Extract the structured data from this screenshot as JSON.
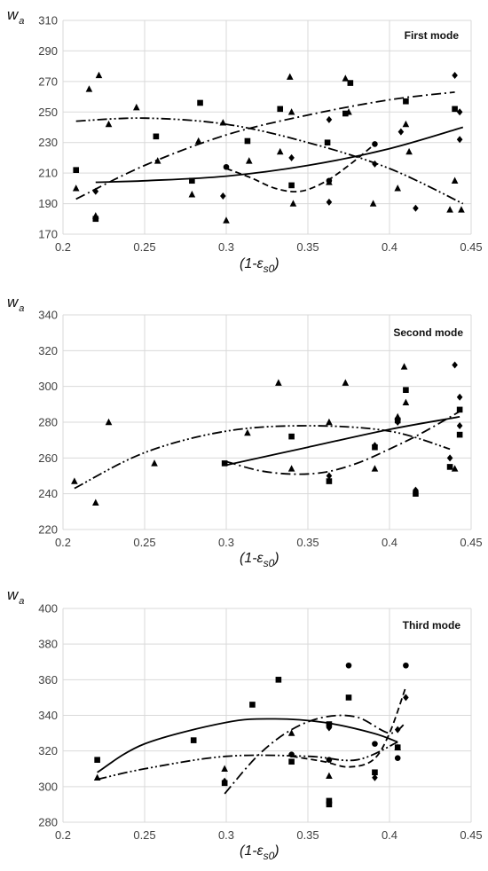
{
  "chart_data": [
    {
      "type": "scatter",
      "title": "First mode",
      "ylabel_main": "w",
      "ylabel_sub": "a",
      "xlabel_main": "(1-ε",
      "xlabel_sub": "s0",
      "xlabel_end": ")",
      "xlim": [
        0.2,
        0.45
      ],
      "ylim": [
        170,
        310
      ],
      "xticks": [
        "0.2",
        "0.25",
        "0.3",
        "0.35",
        "0.4",
        "0.45"
      ],
      "yticks": [
        "170",
        "190",
        "210",
        "230",
        "250",
        "270",
        "290",
        "310"
      ],
      "grid": true,
      "series": [
        {
          "marker": "triangle",
          "linestyle": "dash-dot-dot",
          "points": [
            [
              0.208,
              200
            ],
            [
              0.216,
              265
            ],
            [
              0.22,
              182
            ],
            [
              0.222,
              274
            ],
            [
              0.228,
              242
            ],
            [
              0.245,
              253
            ],
            [
              0.258,
              218
            ],
            [
              0.279,
              196
            ],
            [
              0.283,
              231
            ],
            [
              0.298,
              243
            ],
            [
              0.3,
              179
            ],
            [
              0.314,
              218
            ],
            [
              0.333,
              224
            ],
            [
              0.339,
              273
            ],
            [
              0.34,
              250
            ],
            [
              0.341,
              190
            ],
            [
              0.363,
              204
            ],
            [
              0.373,
              272
            ],
            [
              0.375,
              250
            ],
            [
              0.39,
              190
            ],
            [
              0.405,
              200
            ],
            [
              0.41,
              242
            ],
            [
              0.412,
              224
            ],
            [
              0.437,
              186
            ],
            [
              0.44,
              205
            ],
            [
              0.444,
              186
            ]
          ],
          "fit": [
            [
              0.208,
              244
            ],
            [
              0.25,
              246
            ],
            [
              0.3,
              242
            ],
            [
              0.35,
              230
            ],
            [
              0.4,
              213
            ],
            [
              0.445,
              190
            ]
          ]
        },
        {
          "marker": "square",
          "linestyle": "solid",
          "points": [
            [
              0.208,
              212
            ],
            [
              0.22,
              180
            ],
            [
              0.257,
              234
            ],
            [
              0.279,
              205
            ],
            [
              0.284,
              256
            ],
            [
              0.313,
              231
            ],
            [
              0.333,
              252
            ],
            [
              0.34,
              202
            ],
            [
              0.362,
              230
            ],
            [
              0.373,
              249
            ],
            [
              0.376,
              269
            ],
            [
              0.41,
              257
            ],
            [
              0.44,
              252
            ]
          ],
          "fit": [
            [
              0.22,
              204
            ],
            [
              0.25,
              205
            ],
            [
              0.3,
              208
            ],
            [
              0.35,
              215
            ],
            [
              0.4,
              226
            ],
            [
              0.445,
              240
            ]
          ]
        },
        {
          "marker": "diamond",
          "linestyle": "dash-dot",
          "points": [
            [
              0.22,
              198
            ],
            [
              0.298,
              195
            ],
            [
              0.34,
              220
            ],
            [
              0.363,
              191
            ],
            [
              0.363,
              245
            ],
            [
              0.391,
              216
            ],
            [
              0.407,
              237
            ],
            [
              0.416,
              187
            ],
            [
              0.44,
              274
            ],
            [
              0.443,
              250
            ],
            [
              0.443,
              232
            ]
          ],
          "fit": [
            [
              0.208,
              193
            ],
            [
              0.25,
              215
            ],
            [
              0.3,
              235
            ],
            [
              0.35,
              248
            ],
            [
              0.4,
              258
            ],
            [
              0.44,
              263
            ]
          ]
        },
        {
          "marker": "circle",
          "linestyle": "dash",
          "points": [
            [
              0.3,
              214
            ],
            [
              0.363,
              205
            ],
            [
              0.391,
              229
            ]
          ],
          "fit": [
            [
              0.3,
              213
            ],
            [
              0.315,
              207
            ],
            [
              0.33,
              200
            ],
            [
              0.345,
              198
            ],
            [
              0.36,
              204
            ],
            [
              0.375,
              215
            ],
            [
              0.391,
              229
            ]
          ]
        }
      ]
    },
    {
      "type": "scatter",
      "title": "Second mode",
      "ylabel_main": "w",
      "ylabel_sub": "a",
      "xlabel_main": "(1-ε",
      "xlabel_sub": "s0",
      "xlabel_end": ")",
      "xlim": [
        0.2,
        0.45
      ],
      "ylim": [
        220,
        340
      ],
      "xticks": [
        "0.2",
        "0.25",
        "0.3",
        "0.35",
        "0.4",
        "0.45"
      ],
      "yticks": [
        "220",
        "240",
        "260",
        "280",
        "300",
        "320",
        "340"
      ],
      "grid": true,
      "series": [
        {
          "marker": "triangle",
          "linestyle": "dash-dot-dot",
          "points": [
            [
              0.207,
              247
            ],
            [
              0.22,
              235
            ],
            [
              0.228,
              280
            ],
            [
              0.256,
              257
            ],
            [
              0.313,
              274
            ],
            [
              0.332,
              302
            ],
            [
              0.34,
              254
            ],
            [
              0.363,
              280
            ],
            [
              0.373,
              302
            ],
            [
              0.391,
              254
            ],
            [
              0.405,
              283
            ],
            [
              0.409,
              311
            ],
            [
              0.41,
              291
            ],
            [
              0.44,
              254
            ]
          ],
          "fit": [
            [
              0.207,
              243
            ],
            [
              0.25,
              263
            ],
            [
              0.3,
              275
            ],
            [
              0.35,
              278
            ],
            [
              0.4,
              275
            ],
            [
              0.437,
              265
            ]
          ]
        },
        {
          "marker": "square",
          "linestyle": "solid",
          "points": [
            [
              0.299,
              257
            ],
            [
              0.34,
              272
            ],
            [
              0.363,
              247
            ],
            [
              0.391,
              266
            ],
            [
              0.405,
              281
            ],
            [
              0.41,
              298
            ],
            [
              0.416,
              240
            ],
            [
              0.437,
              255
            ],
            [
              0.443,
              287
            ],
            [
              0.443,
              273
            ]
          ],
          "fit": [
            [
              0.3,
              256
            ],
            [
              0.35,
              266
            ],
            [
              0.4,
              276
            ],
            [
              0.443,
              283
            ]
          ]
        },
        {
          "marker": "diamond",
          "linestyle": "dash-dot",
          "points": [
            [
              0.363,
              250
            ],
            [
              0.391,
              267
            ],
            [
              0.405,
              280
            ],
            [
              0.416,
              242
            ],
            [
              0.44,
              312
            ],
            [
              0.443,
              294
            ],
            [
              0.443,
              278
            ],
            [
              0.437,
              260
            ]
          ],
          "fit": [
            [
              0.3,
              258
            ],
            [
              0.32,
              253
            ],
            [
              0.34,
              251
            ],
            [
              0.36,
              252
            ],
            [
              0.38,
              257
            ],
            [
              0.4,
              265
            ],
            [
              0.42,
              274
            ],
            [
              0.443,
              286
            ]
          ]
        }
      ]
    },
    {
      "type": "scatter",
      "title": "Third mode",
      "ylabel_main": "w",
      "ylabel_sub": "a",
      "xlabel_main": "(1-ε",
      "xlabel_sub": "s0",
      "xlabel_end": ")",
      "xlim": [
        0.2,
        0.45
      ],
      "ylim": [
        280,
        400
      ],
      "xticks": [
        "0.2",
        "0.25",
        "0.3",
        "0.35",
        "0.4",
        "0.45"
      ],
      "yticks": [
        "280",
        "300",
        "320",
        "340",
        "360",
        "380",
        "400"
      ],
      "grid": true,
      "series": [
        {
          "marker": "triangle",
          "linestyle": "dash-dot-dot",
          "points": [
            [
              0.221,
              305
            ],
            [
              0.299,
              310
            ],
            [
              0.34,
              330
            ],
            [
              0.363,
              306
            ],
            [
              0.405,
              322
            ]
          ],
          "fit": [
            [
              0.221,
              304
            ],
            [
              0.25,
              310
            ],
            [
              0.3,
              317
            ],
            [
              0.35,
              317
            ],
            [
              0.38,
              315
            ],
            [
              0.405,
              325
            ]
          ]
        },
        {
          "marker": "square",
          "linestyle": "solid",
          "points": [
            [
              0.221,
              315
            ],
            [
              0.28,
              326
            ],
            [
              0.299,
              302
            ],
            [
              0.316,
              346
            ],
            [
              0.332,
              360
            ],
            [
              0.34,
              314
            ],
            [
              0.363,
              292
            ],
            [
              0.363,
              290
            ],
            [
              0.363,
              335
            ],
            [
              0.375,
              350
            ],
            [
              0.391,
              308
            ],
            [
              0.405,
              322
            ]
          ],
          "fit": [
            [
              0.221,
              308
            ],
            [
              0.25,
              324
            ],
            [
              0.3,
              336
            ],
            [
              0.33,
              338
            ],
            [
              0.36,
              336
            ],
            [
              0.39,
              330
            ],
            [
              0.405,
              325
            ]
          ]
        },
        {
          "marker": "diamond",
          "linestyle": "dash-dot",
          "points": [
            [
              0.299,
              303
            ],
            [
              0.363,
              333
            ],
            [
              0.391,
              305
            ],
            [
              0.405,
              332
            ],
            [
              0.41,
              350
            ]
          ],
          "fit": [
            [
              0.299,
              296
            ],
            [
              0.32,
              318
            ],
            [
              0.34,
              332
            ],
            [
              0.36,
              339
            ],
            [
              0.38,
              339
            ],
            [
              0.4,
              330
            ],
            [
              0.41,
              336
            ]
          ]
        },
        {
          "marker": "circle",
          "linestyle": "dash",
          "points": [
            [
              0.34,
              318
            ],
            [
              0.363,
              315
            ],
            [
              0.375,
              368
            ],
            [
              0.391,
              324
            ],
            [
              0.405,
              316
            ],
            [
              0.41,
              368
            ]
          ],
          "fit": [
            [
              0.34,
              317
            ],
            [
              0.36,
              314
            ],
            [
              0.375,
              311
            ],
            [
              0.39,
              315
            ],
            [
              0.4,
              330
            ],
            [
              0.41,
              356
            ]
          ]
        }
      ]
    }
  ]
}
